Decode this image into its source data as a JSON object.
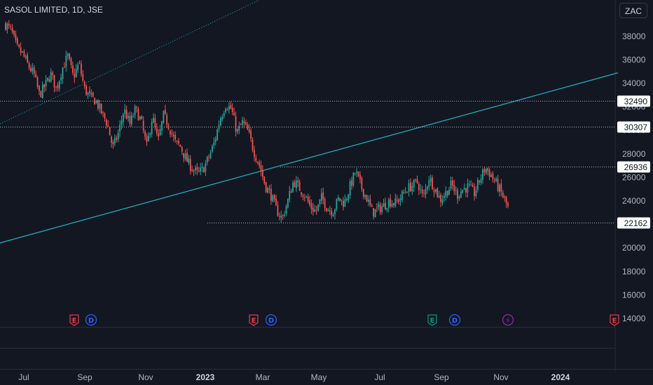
{
  "header": {
    "title": "SASOL LIMITED, 1D, JSE",
    "currency": "ZAC"
  },
  "chart_data": {
    "type": "candlestick",
    "title": "SASOL LIMITED, 1D, JSE",
    "y_ticks": [
      38000,
      36000,
      34000,
      32000,
      30000,
      28000,
      26000,
      24000,
      22000,
      20000,
      18000,
      16000,
      14000
    ],
    "x_ticks": [
      {
        "label": "Jul",
        "bold": false
      },
      {
        "label": "Sep",
        "bold": false
      },
      {
        "label": "Nov",
        "bold": false
      },
      {
        "label": "2023",
        "bold": true
      },
      {
        "label": "Mar",
        "bold": false
      },
      {
        "label": "May",
        "bold": false
      },
      {
        "label": "Jul",
        "bold": false
      },
      {
        "label": "Sep",
        "bold": false
      },
      {
        "label": "Nov",
        "bold": false
      },
      {
        "label": "2024",
        "bold": true
      }
    ],
    "horizontal_levels": [
      {
        "value": 32490,
        "label": "32490"
      },
      {
        "value": 30307,
        "label": "30307"
      },
      {
        "value": 26936,
        "label": "26936"
      },
      {
        "value": 22162,
        "label": "22162"
      }
    ],
    "close_path": [
      39000,
      38500,
      37000,
      36500,
      35500,
      34800,
      33000,
      33800,
      34800,
      33500,
      35200,
      36300,
      34500,
      35700,
      33500,
      32800,
      32500,
      31500,
      30600,
      28500,
      29800,
      31800,
      30500,
      31800,
      30800,
      28600,
      31200,
      29000,
      31300,
      30300,
      29000,
      28600,
      27500,
      26800,
      26300,
      26700,
      27700,
      29000,
      31000,
      32200,
      31800,
      29800,
      30700,
      29800,
      28200,
      27000,
      25300,
      24500,
      23200,
      22500,
      24000,
      25700,
      25100,
      24500,
      23500,
      23100,
      24300,
      23400,
      23100,
      24200,
      23800,
      25200,
      26500,
      25200,
      24200,
      23000,
      23300,
      23600,
      24000,
      23800,
      24300,
      25000,
      25300,
      25600,
      24200,
      26000,
      25100,
      24100,
      24700,
      25400,
      24500,
      25000,
      25200,
      24600,
      25800,
      26800,
      26200,
      25400,
      24500,
      23400
    ],
    "events": [
      {
        "label": "E",
        "kind": "earnings",
        "color": "#f23645"
      },
      {
        "label": "D",
        "kind": "dividend",
        "color": "#2962ff"
      },
      {
        "label": "E",
        "kind": "earnings",
        "color": "#f23645"
      },
      {
        "label": "D",
        "kind": "dividend",
        "color": "#2962ff"
      },
      {
        "label": "E",
        "kind": "earnings",
        "color": "#089981"
      },
      {
        "label": "D",
        "kind": "dividend",
        "color": "#2962ff"
      },
      {
        "label": "⚡",
        "kind": "split",
        "color": "#9c27b0"
      },
      {
        "label": "E",
        "kind": "earnings",
        "color": "#f23645"
      }
    ],
    "colors": {
      "background": "#131722",
      "up": "#26a69a",
      "down": "#ef5350",
      "trendline": "#22b5c9",
      "level_line": "#b2b5be",
      "axis_text": "#b2b5be"
    }
  }
}
